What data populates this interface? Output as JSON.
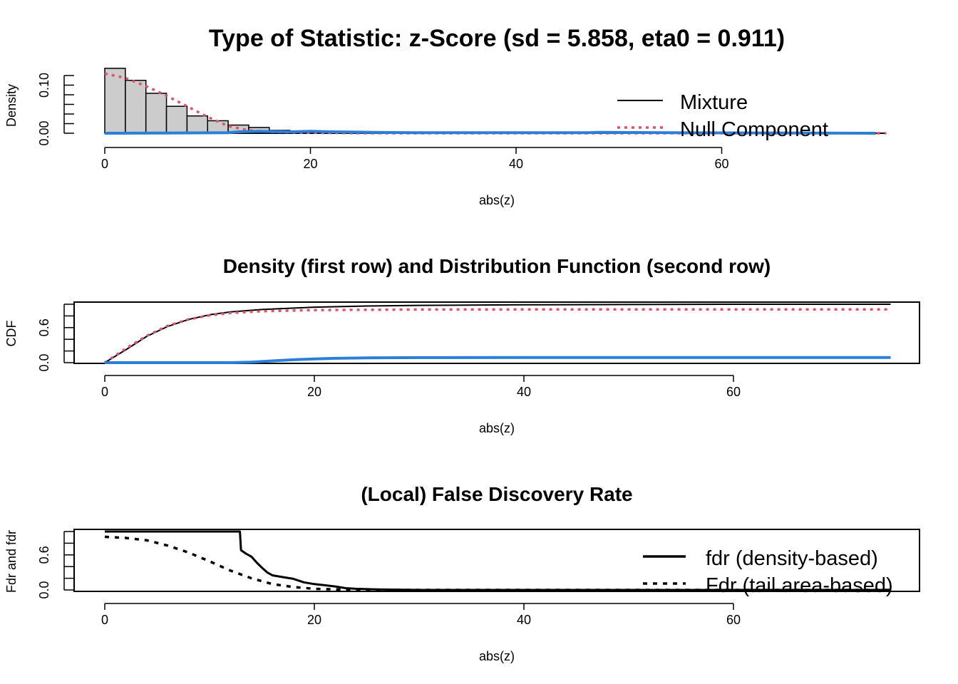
{
  "chart_data": [
    {
      "type": "bar",
      "title": "Type of Statistic: z-Score  (sd = 5.858, eta0 = 0.911)",
      "xlabel": "abs(z)",
      "ylabel": "Density",
      "xlim": [
        0,
        76
      ],
      "ylim": [
        0,
        0.12
      ],
      "x_ticks": [
        0,
        20,
        40,
        60
      ],
      "y_ticks": [
        "0.00",
        "0.10"
      ],
      "y_minor_ticks": [
        0,
        0.02,
        0.04,
        0.06,
        0.08,
        0.1,
        0.12
      ],
      "histogram": {
        "bin_width": 2,
        "bin_starts": [
          0,
          2,
          4,
          6,
          8,
          10,
          12,
          14,
          16,
          18
        ],
        "values": [
          0.135,
          0.11,
          0.083,
          0.056,
          0.036,
          0.026,
          0.017,
          0.012,
          0.006,
          0.003
        ],
        "fill": "#cccccc"
      },
      "series": [
        {
          "name": "Mixture",
          "style": "solid",
          "color": "#000000",
          "x": [
            0,
            76
          ],
          "y": [
            0,
            0
          ]
        },
        {
          "name": "Null Component",
          "style": "dotted",
          "color": "#df536b",
          "x": [
            0,
            2,
            4,
            6,
            8,
            10,
            12,
            14,
            16,
            18,
            20,
            25,
            30,
            76
          ],
          "y": [
            0.124,
            0.115,
            0.098,
            0.078,
            0.056,
            0.034,
            0.015,
            0.006,
            0.003,
            0.002,
            0.001,
            0,
            0,
            0
          ]
        },
        {
          "name": "",
          "style": "solid",
          "color": "#2b7fd8",
          "x": [
            0,
            12,
            13,
            15,
            18,
            20,
            22,
            26,
            30,
            40,
            47,
            48,
            55,
            75
          ],
          "y": [
            0,
            0.001,
            0.003,
            0.004,
            0.003,
            0.004,
            0.003,
            0.002,
            0.001,
            0.001,
            0.001,
            0.002,
            0.001,
            0
          ]
        }
      ],
      "legend": {
        "placement": "top-right",
        "items": [
          "Mixture",
          "Null Component"
        ]
      }
    },
    {
      "type": "line",
      "title": "Density (first row) and Distribution Function (second row)",
      "xlabel": "abs(z)",
      "ylabel": "CDF",
      "xlim": [
        0,
        76
      ],
      "ylim": [
        0,
        1
      ],
      "x_ticks": [
        0,
        20,
        40,
        60
      ],
      "y_ticks": [
        "0.0",
        "0.6"
      ],
      "y_minor_ticks": [
        0,
        0.2,
        0.4,
        0.6,
        0.8,
        1.0
      ],
      "series": [
        {
          "style": "solid",
          "color": "#000000",
          "x": [
            0,
            2,
            4,
            6,
            8,
            10,
            12,
            15,
            20,
            25,
            30,
            40,
            50,
            60,
            75
          ],
          "y": [
            0,
            0.22,
            0.45,
            0.62,
            0.74,
            0.82,
            0.87,
            0.91,
            0.95,
            0.97,
            0.98,
            0.99,
            0.995,
            1.0,
            1.0
          ]
        },
        {
          "style": "dotted",
          "color": "#df536b",
          "x": [
            0,
            2,
            4,
            6,
            8,
            10,
            12,
            15,
            20,
            25,
            30,
            40,
            75
          ],
          "y": [
            0,
            0.24,
            0.46,
            0.63,
            0.74,
            0.81,
            0.85,
            0.88,
            0.9,
            0.905,
            0.91,
            0.911,
            0.911
          ]
        },
        {
          "style": "solid",
          "color": "#2b7fd8",
          "x": [
            0,
            12,
            14,
            16,
            18,
            20,
            22,
            25,
            30,
            40,
            50,
            75
          ],
          "y": [
            0,
            0,
            0.01,
            0.03,
            0.05,
            0.065,
            0.075,
            0.082,
            0.086,
            0.088,
            0.089,
            0.089
          ]
        }
      ]
    },
    {
      "type": "line",
      "title": "(Local) False Discovery Rate",
      "xlabel": "abs(z)",
      "ylabel": "Fdr and fdr",
      "xlim": [
        0,
        76
      ],
      "ylim": [
        0,
        1
      ],
      "x_ticks": [
        0,
        20,
        40,
        60
      ],
      "y_ticks": [
        "0.0",
        "0.6"
      ],
      "y_minor_ticks": [
        0,
        0.2,
        0.4,
        0.6,
        0.8,
        1.0
      ],
      "series": [
        {
          "name": "fdr (density-based)",
          "style": "solid",
          "color": "#000000",
          "x": [
            0,
            12.9,
            13,
            13.5,
            14,
            14.5,
            15,
            15.5,
            16,
            17,
            18,
            19,
            20,
            21,
            22,
            23,
            24,
            26,
            30,
            40,
            75
          ],
          "y": [
            1,
            1,
            0.68,
            0.62,
            0.57,
            0.47,
            0.38,
            0.3,
            0.25,
            0.22,
            0.19,
            0.13,
            0.1,
            0.08,
            0.06,
            0.03,
            0.02,
            0.01,
            0.0,
            0.0,
            0.0
          ]
        },
        {
          "name": "Fdr (tail area-based)",
          "style": "dashed",
          "color": "#000000",
          "x": [
            0,
            2,
            4,
            6,
            8,
            10,
            12,
            14,
            16,
            18,
            20,
            22,
            25,
            30,
            75
          ],
          "y": [
            0.91,
            0.89,
            0.85,
            0.76,
            0.64,
            0.49,
            0.33,
            0.2,
            0.1,
            0.05,
            0.02,
            0.01,
            0.0,
            0.0,
            0.0
          ]
        }
      ],
      "legend": {
        "placement": "top-right",
        "items": [
          "fdr (density-based)",
          "Fdr (tail area-based)"
        ]
      }
    }
  ]
}
